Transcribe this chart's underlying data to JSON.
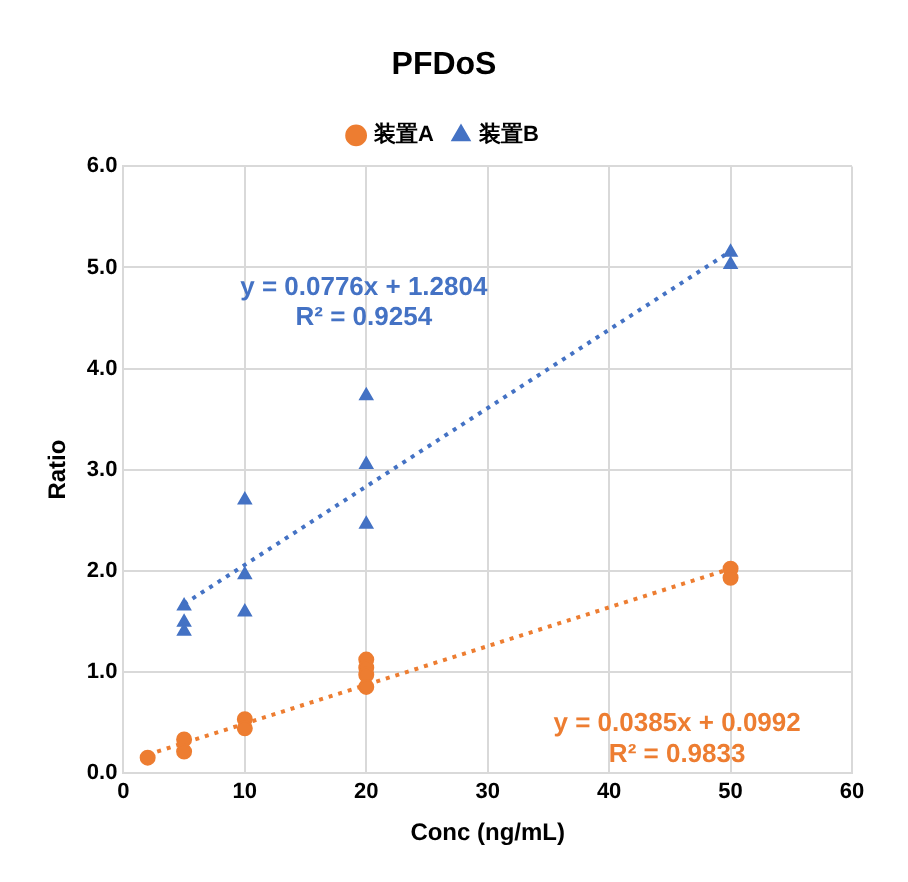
{
  "chart_data": {
    "type": "scatter",
    "title": "PFDoS",
    "xlabel": "Conc (ng/mL)",
    "ylabel": "Ratio",
    "series": [
      {
        "name": "装置A",
        "marker": "circle",
        "color": "#ed7d31",
        "x": [
          2,
          5,
          5,
          10,
          10,
          20,
          20,
          20,
          20,
          50,
          50
        ],
        "values": [
          0.15,
          0.33,
          0.21,
          0.53,
          0.44,
          1.12,
          1.04,
          0.97,
          0.85,
          2.02,
          1.93
        ]
      },
      {
        "name": "装置B",
        "marker": "triangle",
        "color": "#4472c4",
        "x": [
          5,
          5,
          5,
          10,
          10,
          10,
          20,
          20,
          20,
          50,
          50
        ],
        "values": [
          1.65,
          1.49,
          1.4,
          2.7,
          1.96,
          1.59,
          3.73,
          3.05,
          2.46,
          5.15,
          5.03
        ]
      },
      {
        "type": "line",
        "line_style": "dotted",
        "marker": "none",
        "color": "#4472c4",
        "x": [
          5,
          50
        ],
        "values": [
          1.67,
          5.16
        ]
      },
      {
        "type": "line",
        "line_style": "dotted",
        "marker": "none",
        "color": "#ed7d31",
        "x": [
          2,
          50
        ],
        "values": [
          0.18,
          2.02
        ]
      }
    ],
    "xlim": [
      0,
      60
    ],
    "xticks": [
      0,
      10,
      20,
      30,
      40,
      50,
      60
    ],
    "ylim": [
      0,
      6
    ],
    "yticks": [
      {
        "value": 0,
        "label": "0.0"
      },
      {
        "value": 1,
        "label": "1.0"
      },
      {
        "value": 2,
        "label": "2.0"
      },
      {
        "value": 3,
        "label": "3.0"
      },
      {
        "value": 4,
        "label": "4.0"
      },
      {
        "value": 5,
        "label": "5.0"
      },
      {
        "value": 6,
        "label": "6.0"
      }
    ],
    "grid": true,
    "legend": "top",
    "annotations": [
      "y = 0.0776x + 1.2804",
      "R² = 0.9254",
      "y = 0.0385x + 0.0992",
      "R² = 0.9833"
    ]
  }
}
